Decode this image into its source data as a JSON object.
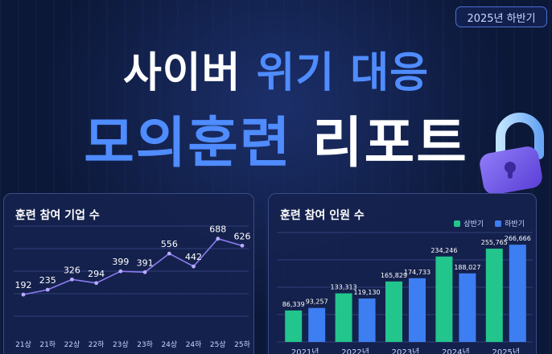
{
  "badge": "2025년 하반기",
  "title": {
    "line1_white": "사이버 ",
    "line1_blue": "위기 대응",
    "line2_blue": "모의훈련 ",
    "line2_white": "리포트"
  },
  "colors": {
    "accent": "#4f8cff",
    "green": "#22c58b",
    "bar_blue": "#3d7ef2",
    "line": "#8a7cf0"
  },
  "icons": [
    "lock-icon"
  ],
  "chart_data": [
    {
      "type": "line",
      "title": "훈련 참여 기업 수",
      "x": [
        "21년 상반기",
        "21년 하반기",
        "22년 상반기",
        "22년 하반기",
        "23년 상반기",
        "23년 하반기",
        "24년 상반기",
        "24년 하반기",
        "25년 상반기",
        "25년 하반기"
      ],
      "x_tick_visible": [
        "21상",
        "21하",
        "22상",
        "22하",
        "23상",
        "23하",
        "24상",
        "24하",
        "25상",
        "25하"
      ],
      "values": [
        192,
        235,
        326,
        294,
        399,
        391,
        556,
        442,
        688,
        626
      ],
      "ylim": [
        0,
        800
      ],
      "grid": true
    },
    {
      "type": "bar",
      "title": "훈련 참여 인원 수",
      "categories": [
        "2021년",
        "2022년",
        "2023년",
        "2024년",
        "2025년"
      ],
      "series": [
        {
          "name": "상반기",
          "values": [
            86339,
            133313,
            165829,
            234246,
            255765
          ]
        },
        {
          "name": "하반기",
          "values": [
            93257,
            119130,
            174733,
            188027,
            266666
          ]
        }
      ],
      "ylim": [
        0,
        300000
      ],
      "legend": "top-right",
      "grid": true
    }
  ]
}
